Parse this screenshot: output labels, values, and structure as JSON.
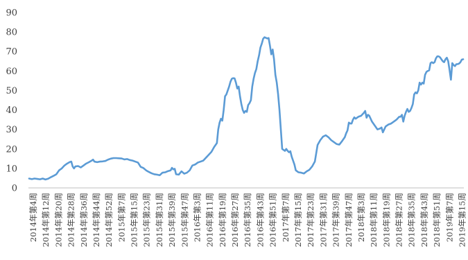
{
  "chart_data": {
    "type": "line",
    "title": "",
    "xlabel": "",
    "ylabel": "",
    "ylim": [
      0,
      90
    ],
    "yticks": [
      0,
      10,
      20,
      30,
      40,
      50,
      60,
      70,
      80,
      90
    ],
    "grid": false,
    "legend": "none",
    "line_color": "#5B9BD5",
    "x_labels": [
      "2014年第4周",
      "2014年第12周",
      "2014年第20周",
      "2014年第28周",
      "2014年第36周",
      "2014年第44周",
      "2014年第52周",
      "2015年第7周",
      "2015年第15周",
      "2015年第23周",
      "2015年第31周",
      "2015年第39周",
      "2015年第47周",
      "2016年第3周",
      "2016年第11周",
      "2016年第19周",
      "2016年第27周",
      "2016年第35周",
      "2016年第43周",
      "2016年第51周",
      "2017年第7周",
      "2017年第15周",
      "2017年第23周",
      "2017年第31周",
      "2017年第39周",
      "2017年第47周",
      "2018年第3周",
      "2018年第11周",
      "2018年第19周",
      "2018年第27周",
      "2018年第35周",
      "2018年第43周",
      "2018年第51周",
      "2019年第7周",
      "2019年第15周"
    ],
    "series": [
      {
        "name": "",
        "points": [
          [
            0,
            4.8
          ],
          [
            2,
            4.5
          ],
          [
            4,
            4.8
          ],
          [
            6,
            4.6
          ],
          [
            8,
            4.4
          ],
          [
            10,
            4.8
          ],
          [
            12,
            4.3
          ],
          [
            14,
            4.7
          ],
          [
            16,
            5.5
          ],
          [
            18,
            6.2
          ],
          [
            20,
            7
          ],
          [
            22,
            9
          ],
          [
            24,
            10
          ],
          [
            26,
            11.5
          ],
          [
            28,
            12.5
          ],
          [
            30,
            13.3
          ],
          [
            31,
            13.5
          ],
          [
            32,
            11
          ],
          [
            33,
            10
          ],
          [
            34,
            11
          ],
          [
            36,
            11.2
          ],
          [
            38,
            10.5
          ],
          [
            40,
            11.5
          ],
          [
            42,
            12.5
          ],
          [
            44,
            13.2
          ],
          [
            46,
            14
          ],
          [
            47,
            14.5
          ],
          [
            48,
            13.5
          ],
          [
            50,
            13.2
          ],
          [
            52,
            13.5
          ],
          [
            54,
            13.6
          ],
          [
            56,
            13.8
          ],
          [
            58,
            14.5
          ],
          [
            60,
            15
          ],
          [
            62,
            15.3
          ],
          [
            64,
            15.3
          ],
          [
            66,
            15.2
          ],
          [
            68,
            15.1
          ],
          [
            70,
            14.6
          ],
          [
            72,
            14.8
          ],
          [
            74,
            14.3
          ],
          [
            76,
            14
          ],
          [
            78,
            13.5
          ],
          [
            80,
            13
          ],
          [
            82,
            10.8
          ],
          [
            84,
            10.2
          ],
          [
            86,
            9
          ],
          [
            88,
            8.2
          ],
          [
            90,
            7.5
          ],
          [
            92,
            7
          ],
          [
            94,
            6.8
          ],
          [
            96,
            6.5
          ],
          [
            98,
            7.8
          ],
          [
            100,
            8
          ],
          [
            102,
            8.6
          ],
          [
            104,
            9
          ],
          [
            105,
            10.3
          ],
          [
            106,
            9.5
          ],
          [
            107,
            9.8
          ],
          [
            108,
            7
          ],
          [
            110,
            6.8
          ],
          [
            112,
            8.5
          ],
          [
            114,
            7.3
          ],
          [
            116,
            7.8
          ],
          [
            118,
            9
          ],
          [
            120,
            11.5
          ],
          [
            122,
            12
          ],
          [
            124,
            13
          ],
          [
            126,
            13.5
          ],
          [
            128,
            14
          ],
          [
            130,
            15.5
          ],
          [
            132,
            17
          ],
          [
            134,
            18.5
          ],
          [
            136,
            21
          ],
          [
            138,
            23
          ],
          [
            139,
            30
          ],
          [
            140,
            33.5
          ],
          [
            141,
            35.5
          ],
          [
            142,
            34.5
          ],
          [
            143,
            40
          ],
          [
            144,
            47
          ],
          [
            145,
            48
          ],
          [
            146,
            50
          ],
          [
            147,
            52
          ],
          [
            148,
            54.5
          ],
          [
            149,
            56
          ],
          [
            150,
            56.3
          ],
          [
            151,
            56.2
          ],
          [
            152,
            54
          ],
          [
            153,
            51
          ],
          [
            154,
            52
          ],
          [
            155,
            47
          ],
          [
            156,
            43
          ],
          [
            157,
            40
          ],
          [
            158,
            38.5
          ],
          [
            159,
            39.5
          ],
          [
            160,
            39
          ],
          [
            161,
            42.5
          ],
          [
            162,
            43.5
          ],
          [
            163,
            45
          ],
          [
            164,
            52
          ],
          [
            165,
            56
          ],
          [
            166,
            59
          ],
          [
            167,
            61
          ],
          [
            168,
            65
          ],
          [
            169,
            68
          ],
          [
            170,
            72
          ],
          [
            171,
            74
          ],
          [
            172,
            76.5
          ],
          [
            173,
            77.3
          ],
          [
            174,
            77
          ],
          [
            175,
            76.7
          ],
          [
            176,
            76.9
          ],
          [
            177,
            73
          ],
          [
            178,
            68.5
          ],
          [
            179,
            71
          ],
          [
            180,
            66
          ],
          [
            181,
            58
          ],
          [
            182,
            54
          ],
          [
            183,
            48
          ],
          [
            184,
            40
          ],
          [
            185,
            30
          ],
          [
            186,
            20
          ],
          [
            187,
            19.5
          ],
          [
            188,
            19
          ],
          [
            189,
            20
          ],
          [
            190,
            19
          ],
          [
            191,
            18.3
          ],
          [
            192,
            18.8
          ],
          [
            193,
            16
          ],
          [
            194,
            14
          ],
          [
            195,
            12
          ],
          [
            196,
            9
          ],
          [
            198,
            8
          ],
          [
            200,
            7.8
          ],
          [
            202,
            7.4
          ],
          [
            204,
            8.5
          ],
          [
            206,
            9.3
          ],
          [
            208,
            11
          ],
          [
            210,
            13.5
          ],
          [
            212,
            22
          ],
          [
            214,
            24.5
          ],
          [
            216,
            26.3
          ],
          [
            218,
            27
          ],
          [
            220,
            26
          ],
          [
            222,
            24.5
          ],
          [
            224,
            23.5
          ],
          [
            226,
            22.5
          ],
          [
            228,
            22.2
          ],
          [
            230,
            24
          ],
          [
            232,
            26
          ],
          [
            233,
            28
          ],
          [
            234,
            29.5
          ],
          [
            235,
            33.5
          ],
          [
            236,
            33
          ],
          [
            237,
            33
          ],
          [
            238,
            35
          ],
          [
            239,
            36.2
          ],
          [
            240,
            35.5
          ],
          [
            242,
            36.5
          ],
          [
            244,
            37
          ],
          [
            246,
            38.5
          ],
          [
            247,
            39.5
          ],
          [
            248,
            36
          ],
          [
            249,
            37.5
          ],
          [
            250,
            37
          ],
          [
            252,
            34
          ],
          [
            254,
            32
          ],
          [
            256,
            30
          ],
          [
            258,
            30.5
          ],
          [
            259,
            31
          ],
          [
            260,
            28.5
          ],
          [
            261,
            30
          ],
          [
            262,
            31.5
          ],
          [
            264,
            32.5
          ],
          [
            266,
            33
          ],
          [
            268,
            34
          ],
          [
            270,
            35
          ],
          [
            272,
            36.5
          ],
          [
            273,
            36.5
          ],
          [
            274,
            37.5
          ],
          [
            275,
            34
          ],
          [
            276,
            37
          ],
          [
            277,
            39
          ],
          [
            278,
            40.5
          ],
          [
            279,
            39
          ],
          [
            280,
            39.5
          ],
          [
            281,
            41
          ],
          [
            282,
            43
          ],
          [
            283,
            48
          ],
          [
            284,
            49
          ],
          [
            285,
            48.5
          ],
          [
            286,
            50
          ],
          [
            287,
            54
          ],
          [
            288,
            53
          ],
          [
            289,
            54
          ],
          [
            290,
            53.5
          ],
          [
            291,
            58
          ],
          [
            292,
            59.5
          ],
          [
            293,
            60
          ],
          [
            294,
            60.3
          ],
          [
            295,
            64
          ],
          [
            296,
            64.5
          ],
          [
            297,
            64
          ],
          [
            298,
            64.5
          ],
          [
            299,
            66.5
          ],
          [
            300,
            67.5
          ],
          [
            301,
            67.5
          ],
          [
            302,
            67
          ],
          [
            303,
            66
          ],
          [
            304,
            65
          ],
          [
            305,
            64.5
          ],
          [
            306,
            66
          ],
          [
            307,
            66.8
          ],
          [
            308,
            65
          ],
          [
            309,
            60.5
          ],
          [
            310,
            55.5
          ],
          [
            311,
            64
          ],
          [
            312,
            63
          ],
          [
            313,
            62.5
          ],
          [
            314,
            63.5
          ],
          [
            315,
            63.5
          ],
          [
            316,
            63.8
          ],
          [
            317,
            64.5
          ],
          [
            318,
            65.8
          ],
          [
            319,
            66
          ]
        ]
      }
    ]
  }
}
